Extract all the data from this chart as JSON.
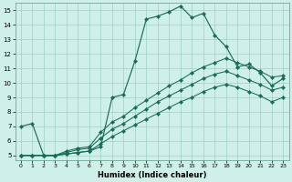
{
  "xlabel": "Humidex (Indice chaleur)",
  "bg_color": "#cff0e8",
  "line_color": "#1a6b5a",
  "xlim": [
    -0.5,
    23.5
  ],
  "ylim": [
    4.7,
    15.5
  ],
  "xticks": [
    0,
    1,
    2,
    3,
    4,
    5,
    6,
    7,
    8,
    9,
    10,
    11,
    12,
    13,
    14,
    15,
    16,
    17,
    18,
    19,
    20,
    21,
    22,
    23
  ],
  "yticks": [
    5,
    6,
    7,
    8,
    9,
    10,
    11,
    12,
    13,
    14,
    15
  ],
  "curve1_x": [
    0,
    1,
    2,
    3,
    4,
    5,
    6,
    7,
    8,
    9,
    10,
    11,
    12,
    13,
    14,
    15,
    16,
    17,
    18,
    19,
    20,
    21,
    22,
    23
  ],
  "curve1_y": [
    7.0,
    7.2,
    5.0,
    5.0,
    5.1,
    5.2,
    5.3,
    5.6,
    9.0,
    9.2,
    11.5,
    14.4,
    14.6,
    14.9,
    15.3,
    14.5,
    14.8,
    13.3,
    12.5,
    11.1,
    11.3,
    10.7,
    9.8,
    10.3
  ],
  "curve2_x": [
    0,
    1,
    2,
    3,
    4,
    5,
    6,
    7,
    8,
    9,
    10,
    11,
    12,
    13,
    14,
    15,
    16,
    17,
    18,
    19,
    20,
    21,
    22,
    23
  ],
  "curve2_y": [
    5.0,
    5.0,
    5.0,
    5.0,
    5.3,
    5.5,
    5.6,
    6.6,
    7.3,
    7.7,
    8.3,
    8.8,
    9.3,
    9.8,
    10.2,
    10.7,
    11.1,
    11.4,
    11.7,
    11.4,
    11.1,
    10.8,
    10.4,
    10.5
  ],
  "curve3_x": [
    0,
    1,
    2,
    3,
    4,
    5,
    6,
    7,
    8,
    9,
    10,
    11,
    12,
    13,
    14,
    15,
    16,
    17,
    18,
    19,
    20,
    21,
    22,
    23
  ],
  "curve3_y": [
    5.0,
    5.0,
    5.0,
    5.0,
    5.2,
    5.4,
    5.5,
    6.2,
    6.8,
    7.2,
    7.7,
    8.2,
    8.7,
    9.1,
    9.5,
    9.9,
    10.3,
    10.6,
    10.8,
    10.5,
    10.2,
    9.9,
    9.5,
    9.7
  ],
  "curve4_x": [
    0,
    1,
    2,
    3,
    4,
    5,
    6,
    7,
    8,
    9,
    10,
    11,
    12,
    13,
    14,
    15,
    16,
    17,
    18,
    19,
    20,
    21,
    22,
    23
  ],
  "curve4_y": [
    5.0,
    5.0,
    5.0,
    5.0,
    5.1,
    5.2,
    5.3,
    5.8,
    6.3,
    6.7,
    7.1,
    7.5,
    7.9,
    8.3,
    8.7,
    9.0,
    9.4,
    9.7,
    9.9,
    9.7,
    9.4,
    9.1,
    8.7,
    9.0
  ]
}
